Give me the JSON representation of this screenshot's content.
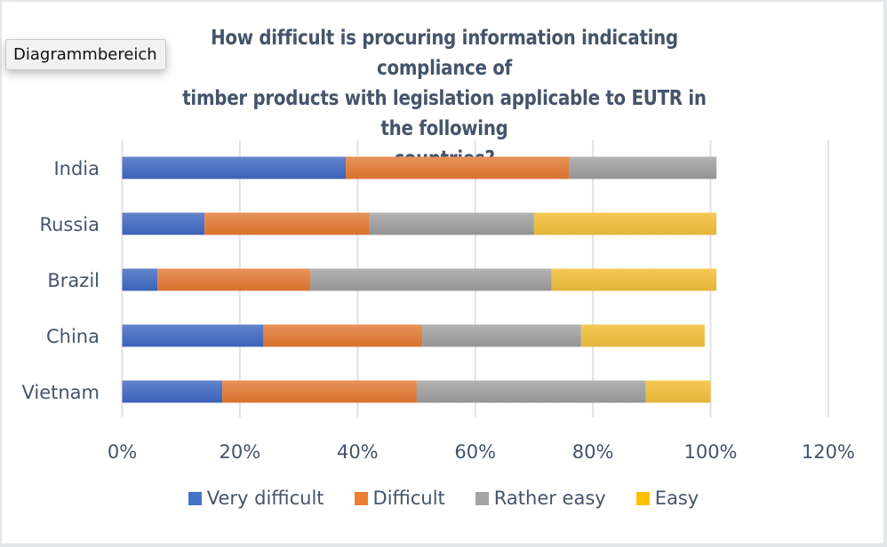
{
  "tooltip": {
    "text": "Diagrammbereich"
  },
  "chart_data": {
    "type": "bar",
    "orientation": "horizontal",
    "stacked": true,
    "title": "How difficult is procuring information indicating compliance of timber products with legislation applicable to EUTR in the following countries?",
    "title_lines": [
      "How difficult is procuring information indicating compliance of",
      "timber products with legislation applicable to EUTR in the following",
      "countries?"
    ],
    "categories": [
      "India",
      "Russia",
      "Brazil",
      "China",
      "Vietnam"
    ],
    "series": [
      {
        "name": "Very difficult",
        "color": "#4472c4",
        "values": [
          38,
          14,
          6,
          24,
          17
        ]
      },
      {
        "name": "Difficult",
        "color": "#ed7d31",
        "values": [
          38,
          28,
          26,
          27,
          33
        ]
      },
      {
        "name": "Rather easy",
        "color": "#a5a5a5",
        "values": [
          25,
          28,
          41,
          27,
          39
        ]
      },
      {
        "name": "Easy",
        "color": "#ffc000",
        "values": [
          0,
          31,
          28,
          21,
          11
        ]
      }
    ],
    "xlabel": "",
    "ylabel": "",
    "xlim": [
      0,
      120
    ],
    "x_ticks": [
      0,
      20,
      40,
      60,
      80,
      100,
      120
    ],
    "x_tick_labels": [
      "0%",
      "20%",
      "40%",
      "60%",
      "80%",
      "100%",
      "120%"
    ],
    "grid": true,
    "legend_position": "bottom"
  }
}
